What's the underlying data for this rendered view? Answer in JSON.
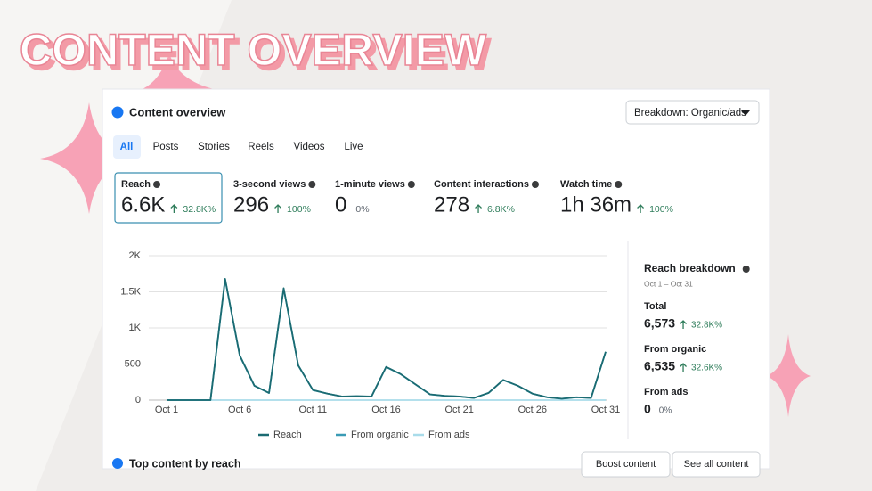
{
  "banner": {
    "title": "CONTENT OVERVIEW"
  },
  "panel": {
    "title": "Content overview",
    "breakdown_button": "Breakdown: Organic/ads",
    "tabs": [
      "All",
      "Posts",
      "Stories",
      "Reels",
      "Videos",
      "Live"
    ],
    "active_tab": 0
  },
  "metrics": {
    "selected": 0,
    "items": [
      {
        "label": "Reach",
        "value": "6.6K",
        "change": "32.8K%",
        "trend": "up"
      },
      {
        "label": "3-second views",
        "value": "296",
        "change": "100%",
        "trend": "up"
      },
      {
        "label": "1-minute views",
        "value": "0",
        "change": "0%"
      },
      {
        "label": "Content interactions",
        "value": "278",
        "change": "6.8K%",
        "trend": "up"
      },
      {
        "label": "Watch time",
        "value": "1h 36m",
        "change": "100%",
        "trend": "up"
      }
    ]
  },
  "chart_data": {
    "type": "line",
    "categories": [
      "Oct 1",
      null,
      null,
      null,
      null,
      "Oct 6",
      null,
      null,
      null,
      null,
      "Oct 11",
      null,
      null,
      null,
      null,
      "Oct 16",
      null,
      null,
      null,
      null,
      "Oct 21",
      null,
      null,
      null,
      null,
      "Oct 26",
      null,
      null,
      null,
      null,
      "Oct 31"
    ],
    "series": [
      {
        "name": "Reach",
        "color": "#1b6b72",
        "values": [
          0,
          0,
          0,
          0,
          1680,
          620,
          200,
          100,
          1550,
          480,
          140,
          90,
          50,
          55,
          50,
          460,
          360,
          220,
          80,
          60,
          50,
          30,
          100,
          280,
          200,
          90,
          40,
          20,
          40,
          30,
          670
        ]
      },
      {
        "name": "From organic",
        "color": "#3a9bb5",
        "values": [
          0,
          0,
          0,
          0,
          1670,
          615,
          198,
          98,
          1545,
          478,
          138,
          89,
          49,
          54,
          49,
          458,
          358,
          218,
          79,
          59,
          49,
          29,
          99,
          278,
          198,
          89,
          39,
          19,
          39,
          29,
          668
        ]
      },
      {
        "name": "From ads",
        "color": "#a9dcea",
        "values": [
          0,
          0,
          0,
          0,
          0,
          0,
          0,
          0,
          0,
          0,
          0,
          0,
          0,
          0,
          0,
          0,
          0,
          0,
          0,
          0,
          0,
          0,
          0,
          0,
          0,
          0,
          0,
          0,
          0,
          0,
          0
        ]
      }
    ],
    "ylim": [
      0,
      2000
    ],
    "yticks": [
      0,
      500,
      {
        "value": 1000,
        "label": "1K"
      },
      {
        "value": 1500,
        "label": "1.5K"
      },
      {
        "value": 2000,
        "label": "2K"
      }
    ],
    "grid": true,
    "legend": "bottom"
  },
  "breakdown": {
    "title": "Reach breakdown",
    "date_range": "Oct 1 – Oct 31",
    "items": [
      {
        "label": "Total",
        "value": "6,573",
        "change": "32.8K%",
        "trend": "up"
      },
      {
        "label": "From organic",
        "value": "6,535",
        "change": "32.6K%",
        "trend": "up"
      },
      {
        "label": "From ads",
        "value": "0",
        "change": "0%"
      }
    ]
  },
  "footer": {
    "title": "Top content by reach",
    "buttons": [
      "Boost content",
      "See all content"
    ]
  }
}
